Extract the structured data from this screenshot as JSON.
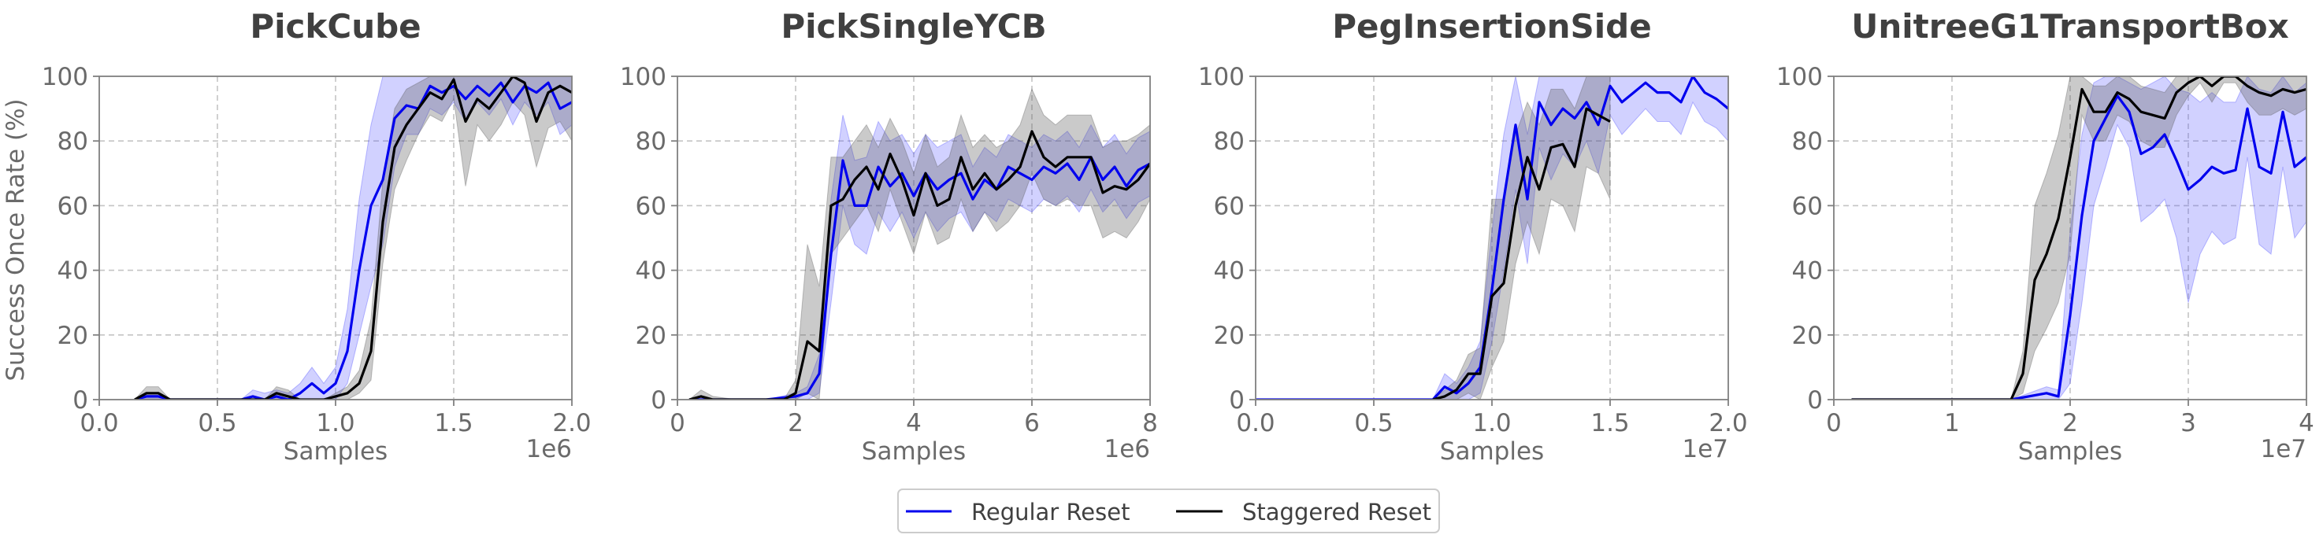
{
  "figure": {
    "y_label": "Success Once Rate (%)",
    "legend": [
      {
        "label": "Regular Reset",
        "color": "#0000ee"
      },
      {
        "label": "Staggered Reset",
        "color": "#000000"
      }
    ],
    "legend_placement": "bottom-center"
  },
  "chart_data": [
    {
      "type": "line",
      "title": "PickCube",
      "xlabel": "Samples",
      "x_multiplier": "1e6",
      "xlim": [
        0,
        2.0
      ],
      "ylim": [
        0,
        100
      ],
      "x_ticks": [
        0.0,
        0.5,
        1.0,
        1.5,
        2.0
      ],
      "x_tick_labels": [
        "0.0",
        "0.5",
        "1.0",
        "1.5",
        "2.0"
      ],
      "y_ticks": [
        0,
        20,
        40,
        60,
        80,
        100
      ],
      "grid": true,
      "series": [
        {
          "name": "Regular Reset",
          "color": "#0000ee",
          "x": [
            0.15,
            0.2,
            0.25,
            0.3,
            0.35,
            0.4,
            0.5,
            0.6,
            0.65,
            0.7,
            0.75,
            0.8,
            0.85,
            0.9,
            0.95,
            1.0,
            1.05,
            1.1,
            1.15,
            1.2,
            1.25,
            1.3,
            1.35,
            1.4,
            1.45,
            1.5,
            1.55,
            1.6,
            1.65,
            1.7,
            1.75,
            1.8,
            1.85,
            1.9,
            1.95,
            2.0
          ],
          "y": [
            0,
            1,
            1,
            0,
            0,
            0,
            0,
            0,
            1,
            0,
            1,
            0,
            2,
            5,
            2,
            5,
            15,
            40,
            60,
            68,
            87,
            91,
            90,
            97,
            95,
            97,
            93,
            97,
            94,
            98,
            92,
            97,
            95,
            98,
            90,
            92
          ],
          "lower": [
            0,
            0,
            0,
            0,
            0,
            0,
            0,
            0,
            0,
            0,
            0,
            0,
            0,
            0,
            0,
            0,
            5,
            20,
            35,
            48,
            72,
            82,
            82,
            90,
            88,
            92,
            86,
            92,
            88,
            93,
            85,
            92,
            88,
            92,
            82,
            85
          ],
          "upper": [
            0,
            2,
            2,
            0,
            0,
            0,
            0,
            0,
            3,
            2,
            3,
            2,
            5,
            10,
            5,
            10,
            28,
            62,
            85,
            100,
            100,
            100,
            100,
            100,
            100,
            100,
            100,
            100,
            100,
            100,
            100,
            100,
            100,
            100,
            100,
            100
          ]
        },
        {
          "name": "Staggered Reset",
          "color": "#000000",
          "x": [
            0.15,
            0.2,
            0.25,
            0.3,
            0.35,
            0.4,
            0.5,
            0.6,
            0.7,
            0.75,
            0.8,
            0.85,
            0.9,
            0.95,
            1.0,
            1.05,
            1.1,
            1.15,
            1.2,
            1.25,
            1.3,
            1.35,
            1.4,
            1.45,
            1.5,
            1.55,
            1.6,
            1.65,
            1.7,
            1.75,
            1.8,
            1.85,
            1.9,
            1.95,
            2.0
          ],
          "y": [
            0,
            2,
            2,
            0,
            0,
            0,
            0,
            0,
            0,
            2,
            1,
            0,
            0,
            0,
            1,
            2,
            5,
            15,
            55,
            78,
            85,
            90,
            95,
            93,
            99,
            86,
            93,
            90,
            95,
            100,
            98,
            86,
            95,
            97,
            95
          ],
          "lower": [
            0,
            0,
            0,
            0,
            0,
            0,
            0,
            0,
            0,
            0,
            0,
            0,
            0,
            0,
            0,
            0,
            2,
            6,
            42,
            65,
            74,
            82,
            88,
            86,
            93,
            66,
            85,
            80,
            85,
            92,
            88,
            72,
            84,
            86,
            80
          ],
          "upper": [
            0,
            4,
            4,
            0,
            0,
            0,
            0,
            0,
            0,
            4,
            3,
            0,
            0,
            0,
            2,
            4,
            9,
            25,
            68,
            90,
            96,
            98,
            100,
            100,
            100,
            100,
            100,
            100,
            100,
            100,
            100,
            100,
            100,
            100,
            100
          ]
        }
      ]
    },
    {
      "type": "line",
      "title": "PickSingleYCB",
      "xlabel": "Samples",
      "x_multiplier": "1e6",
      "xlim": [
        0,
        8
      ],
      "ylim": [
        0,
        100
      ],
      "x_ticks": [
        0,
        2,
        4,
        6,
        8
      ],
      "x_tick_labels": [
        "0",
        "2",
        "4",
        "6",
        "8"
      ],
      "y_ticks": [
        0,
        20,
        40,
        60,
        80,
        100
      ],
      "grid": true,
      "series": [
        {
          "name": "Regular Reset",
          "color": "#0000ee",
          "x": [
            0.2,
            0.5,
            1.0,
            1.5,
            2.0,
            2.2,
            2.4,
            2.6,
            2.8,
            3.0,
            3.2,
            3.4,
            3.6,
            3.8,
            4.0,
            4.2,
            4.4,
            4.6,
            4.8,
            5.0,
            5.2,
            5.4,
            5.6,
            5.8,
            6.0,
            6.2,
            6.4,
            6.6,
            6.8,
            7.0,
            7.2,
            7.4,
            7.6,
            7.8,
            8.0
          ],
          "y": [
            0,
            0,
            0,
            0,
            1,
            2,
            8,
            45,
            74,
            60,
            60,
            72,
            66,
            70,
            63,
            70,
            65,
            68,
            70,
            62,
            68,
            65,
            72,
            70,
            68,
            72,
            70,
            73,
            68,
            75,
            68,
            72,
            66,
            71,
            73
          ],
          "lower": [
            0,
            0,
            0,
            0,
            0,
            0,
            2,
            30,
            60,
            48,
            45,
            58,
            52,
            58,
            50,
            58,
            52,
            56,
            58,
            52,
            58,
            55,
            62,
            60,
            58,
            62,
            60,
            63,
            58,
            65,
            58,
            62,
            56,
            61,
            63
          ],
          "upper": [
            0,
            0,
            0,
            0,
            2,
            4,
            14,
            62,
            88,
            74,
            75,
            86,
            80,
            82,
            76,
            82,
            78,
            80,
            82,
            72,
            78,
            75,
            82,
            80,
            78,
            82,
            80,
            83,
            78,
            85,
            78,
            82,
            76,
            81,
            83
          ]
        },
        {
          "name": "Staggered Reset",
          "color": "#000000",
          "x": [
            0.2,
            0.4,
            0.6,
            1.0,
            1.5,
            1.8,
            2.0,
            2.2,
            2.4,
            2.6,
            2.8,
            3.0,
            3.2,
            3.4,
            3.6,
            3.8,
            4.0,
            4.2,
            4.4,
            4.6,
            4.8,
            5.0,
            5.2,
            5.4,
            5.6,
            5.8,
            6.0,
            6.2,
            6.4,
            6.6,
            6.8,
            7.0,
            7.2,
            7.4,
            7.6,
            7.8,
            8.0
          ],
          "y": [
            0,
            1,
            0,
            0,
            0,
            0,
            2,
            18,
            15,
            60,
            62,
            68,
            72,
            65,
            76,
            68,
            57,
            70,
            60,
            62,
            75,
            65,
            70,
            65,
            68,
            72,
            83,
            75,
            72,
            75,
            75,
            75,
            64,
            66,
            65,
            68,
            73
          ],
          "lower": [
            0,
            0,
            0,
            0,
            0,
            0,
            0,
            2,
            0,
            45,
            50,
            55,
            60,
            52,
            65,
            55,
            45,
            58,
            48,
            50,
            62,
            52,
            58,
            52,
            55,
            60,
            70,
            62,
            60,
            62,
            60,
            60,
            50,
            52,
            50,
            55,
            62
          ],
          "upper": [
            0,
            3,
            1,
            0,
            0,
            0,
            6,
            48,
            35,
            75,
            75,
            80,
            85,
            78,
            87,
            80,
            70,
            82,
            72,
            75,
            88,
            78,
            82,
            78,
            80,
            85,
            96,
            88,
            85,
            88,
            88,
            88,
            78,
            80,
            80,
            82,
            85
          ]
        }
      ]
    },
    {
      "type": "line",
      "title": "PegInsertionSide",
      "xlabel": "Samples",
      "x_multiplier": "1e7",
      "xlim": [
        0,
        2.0
      ],
      "ylim": [
        0,
        100
      ],
      "x_ticks": [
        0.0,
        0.5,
        1.0,
        1.5,
        2.0
      ],
      "x_tick_labels": [
        "0.0",
        "0.5",
        "1.0",
        "1.5",
        "2.0"
      ],
      "y_ticks": [
        0,
        20,
        40,
        60,
        80,
        100
      ],
      "grid": true,
      "series": [
        {
          "name": "Regular Reset",
          "color": "#0000ee",
          "x": [
            0.0,
            0.5,
            0.75,
            0.8,
            0.85,
            0.9,
            0.95,
            1.0,
            1.05,
            1.1,
            1.15,
            1.2,
            1.25,
            1.3,
            1.35,
            1.4,
            1.45,
            1.5,
            1.55,
            1.6,
            1.65,
            1.7,
            1.75,
            1.8,
            1.85,
            1.9,
            1.95,
            2.0
          ],
          "y": [
            0,
            0,
            0,
            4,
            2,
            5,
            10,
            34,
            62,
            85,
            62,
            92,
            85,
            90,
            87,
            92,
            85,
            97,
            92,
            95,
            98,
            95,
            95,
            92,
            100,
            95,
            93,
            90
          ],
          "lower": [
            0,
            0,
            0,
            0,
            0,
            0,
            2,
            18,
            40,
            65,
            42,
            78,
            68,
            76,
            72,
            80,
            70,
            88,
            82,
            86,
            90,
            86,
            86,
            82,
            92,
            86,
            84,
            80
          ],
          "upper": [
            0,
            0,
            0,
            8,
            5,
            10,
            18,
            52,
            82,
            100,
            82,
            100,
            100,
            100,
            100,
            100,
            100,
            100,
            100,
            100,
            100,
            100,
            100,
            100,
            100,
            100,
            100,
            100
          ]
        },
        {
          "name": "Staggered Reset",
          "color": "#000000",
          "x": [
            0.75,
            0.8,
            0.85,
            0.9,
            0.95,
            1.0,
            1.05,
            1.1,
            1.15,
            1.2,
            1.25,
            1.3,
            1.35,
            1.4,
            1.45,
            1.5
          ],
          "y": [
            0,
            1,
            3,
            8,
            8,
            32,
            36,
            60,
            75,
            65,
            78,
            79,
            72,
            90,
            88,
            86
          ],
          "lower": [
            0,
            0,
            0,
            2,
            0,
            10,
            18,
            42,
            55,
            45,
            62,
            60,
            52,
            72,
            70,
            62
          ],
          "upper": [
            0,
            3,
            6,
            14,
            16,
            62,
            62,
            82,
            92,
            85,
            96,
            96,
            90,
            100,
            100,
            100
          ]
        }
      ]
    },
    {
      "type": "line",
      "title": "UnitreeG1TransportBox",
      "xlabel": "Samples",
      "x_multiplier": "1e7",
      "xlim": [
        0,
        4
      ],
      "ylim": [
        0,
        100
      ],
      "x_ticks": [
        0,
        1,
        2,
        3,
        4
      ],
      "x_tick_labels": [
        "0",
        "1",
        "2",
        "3",
        "4"
      ],
      "y_ticks": [
        0,
        20,
        40,
        60,
        80,
        100
      ],
      "grid": true,
      "series": [
        {
          "name": "Regular Reset",
          "color": "#0000ee",
          "x": [
            0.15,
            0.5,
            1.0,
            1.5,
            1.8,
            1.9,
            2.0,
            2.1,
            2.2,
            2.3,
            2.4,
            2.5,
            2.6,
            2.7,
            2.8,
            2.9,
            3.0,
            3.1,
            3.2,
            3.3,
            3.4,
            3.5,
            3.6,
            3.7,
            3.8,
            3.9,
            4.0
          ],
          "y": [
            0,
            0,
            0,
            0,
            2,
            1,
            26,
            57,
            80,
            87,
            94,
            89,
            76,
            78,
            82,
            74,
            65,
            68,
            72,
            70,
            71,
            90,
            72,
            70,
            89,
            72,
            75
          ],
          "lower": [
            0,
            0,
            0,
            0,
            0,
            0,
            5,
            30,
            60,
            72,
            85,
            78,
            55,
            58,
            62,
            50,
            30,
            45,
            52,
            48,
            50,
            75,
            48,
            45,
            72,
            50,
            55
          ],
          "upper": [
            0,
            0,
            0,
            0,
            4,
            3,
            52,
            82,
            98,
            100,
            100,
            98,
            96,
            98,
            100,
            96,
            95,
            92,
            95,
            92,
            92,
            100,
            96,
            95,
            100,
            95,
            98
          ]
        },
        {
          "name": "Staggered Reset",
          "color": "#000000",
          "x": [
            0.15,
            0.5,
            1.0,
            1.5,
            1.6,
            1.7,
            1.8,
            1.9,
            2.0,
            2.1,
            2.2,
            2.3,
            2.4,
            2.5,
            2.6,
            2.7,
            2.8,
            2.9,
            3.0,
            3.1,
            3.2,
            3.3,
            3.4,
            3.5,
            3.6,
            3.7,
            3.8,
            3.9,
            4.0
          ],
          "y": [
            0,
            0,
            0,
            0,
            8,
            37,
            45,
            56,
            75,
            96,
            89,
            89,
            95,
            93,
            89,
            88,
            87,
            95,
            98,
            100,
            97,
            100,
            100,
            97,
            95,
            94,
            96,
            95,
            96
          ],
          "lower": [
            0,
            0,
            0,
            0,
            2,
            15,
            22,
            30,
            45,
            88,
            80,
            80,
            88,
            86,
            80,
            78,
            78,
            88,
            94,
            98,
            92,
            98,
            98,
            92,
            88,
            88,
            90,
            88,
            90
          ],
          "upper": [
            0,
            0,
            0,
            0,
            15,
            60,
            70,
            82,
            100,
            100,
            97,
            97,
            100,
            100,
            97,
            96,
            95,
            100,
            100,
            100,
            100,
            100,
            100,
            100,
            100,
            100,
            100,
            100,
            100
          ]
        }
      ]
    }
  ]
}
